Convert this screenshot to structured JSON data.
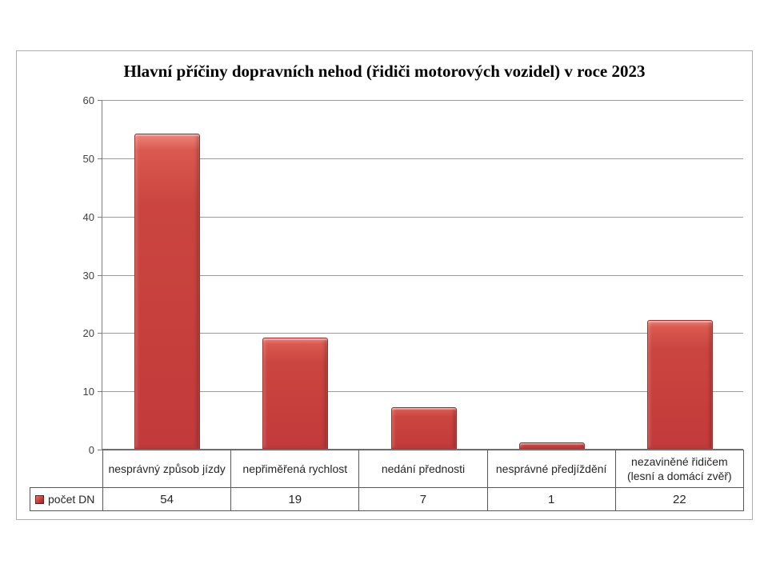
{
  "chart_data": {
    "type": "bar",
    "title": "Hlavní příčiny dopravních nehod (řidiči motorových vozidel) v roce 2023",
    "categories": [
      "nesprávný způsob jízdy",
      "nepřiměřená rychlost",
      "nedání přednosti",
      "nesprávné předjíždění",
      "nezaviněné řidičem (lesní a domácí zvěř)"
    ],
    "series": [
      {
        "name": "počet DN",
        "values": [
          54,
          19,
          7,
          1,
          22
        ]
      }
    ],
    "xlabel": "",
    "ylabel": "",
    "ylim": [
      0,
      60
    ],
    "yticks": [
      0,
      10,
      20,
      30,
      40,
      50,
      60
    ],
    "grid": true,
    "legend_position": "data-table-left",
    "data_table_shown": true,
    "colors": {
      "bar_fill": "#c64341",
      "bar_border": "#9e2f2d",
      "gridline": "#9b9b9b",
      "axis": "#7f7f7f",
      "frame_border": "#adadad",
      "text": "#262626",
      "background": "#ffffff"
    }
  }
}
